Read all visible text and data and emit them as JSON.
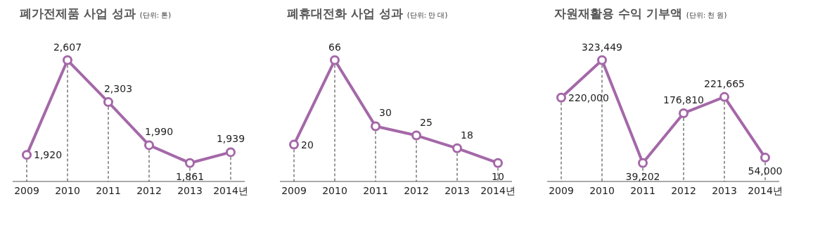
{
  "chart_data": [
    {
      "type": "line",
      "title": "폐가전제품 사업 성과",
      "subtitle": "(단위: 톤)",
      "categories": [
        "2009",
        "2010",
        "2011",
        "2012",
        "2013",
        "2014년"
      ],
      "series": [
        {
          "color": "#a468a8",
          "values": [
            1920,
            2607,
            2303,
            1990,
            1861,
            1939
          ],
          "value_labels": [
            "1,920",
            "2,607",
            "2,303",
            "1,990",
            "1,861",
            "1,939"
          ]
        }
      ],
      "marker": "circle",
      "grid": "x",
      "legend": false
    },
    {
      "type": "line",
      "title": "폐휴대전화 사업 성과",
      "subtitle": "(단위: 만 대)",
      "categories": [
        "2009",
        "2010",
        "2011",
        "2012",
        "2013",
        "2014년"
      ],
      "series": [
        {
          "color": "#a468a8",
          "values": [
            20,
            66,
            30,
            25,
            18,
            10
          ]
        }
      ],
      "data_labels": true,
      "marker": "circle",
      "grid": "x",
      "legend": false
    },
    {
      "type": "line",
      "title": "자원재활용 수익 기부액",
      "subtitle": "(단위: 천 원)",
      "categories": [
        "2009",
        "2010",
        "2011",
        "2012",
        "2013",
        "2014년"
      ],
      "series": [
        {
          "color": "#a468a8",
          "values": [
            220000,
            323449,
            39202,
            176810,
            221665,
            54000
          ],
          "value_labels": [
            "220,000",
            "323,449",
            "39,202",
            "176,810",
            "221,665",
            "54,000"
          ]
        }
      ],
      "marker": "circle",
      "grid": "x",
      "legend": false
    }
  ]
}
